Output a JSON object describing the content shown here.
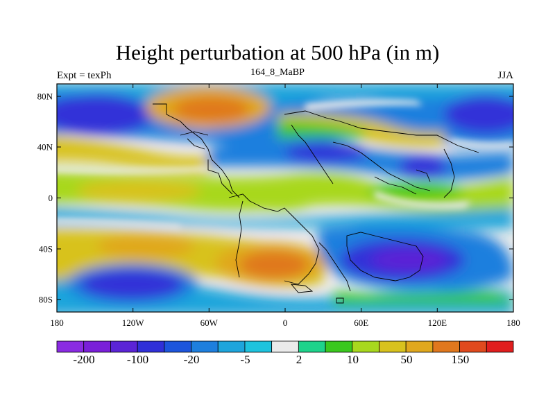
{
  "title": "Height perturbation at 500 hPa (in m)",
  "subtitle_left": "Expt = texPh",
  "subtitle_center": "164_8_MaBP",
  "subtitle_right": "JJA",
  "lon_ticks": [
    "180",
    "120W",
    "60W",
    "0",
    "60E",
    "120E",
    "180"
  ],
  "lat_ticks": [
    "80N",
    "40N",
    "0",
    "40S",
    "80S"
  ],
  "colorbar": {
    "colors": [
      "#8a2be2",
      "#7a1fd9",
      "#5b24d6",
      "#3030d8",
      "#1d55dc",
      "#1e7fde",
      "#1ea5dc",
      "#1ec3de",
      "#ebebeb",
      "#1ed38b",
      "#3ac81e",
      "#a8d81e",
      "#d8c21e",
      "#e0a81e",
      "#e0781e",
      "#e04a1e",
      "#e01e1e"
    ],
    "labels": [
      "-200",
      "-100",
      "-20",
      "-5",
      "2",
      "10",
      "50",
      "150"
    ]
  },
  "colors": {
    "neutral": "#ebebeb",
    "blue_deep": "#3030d8",
    "blue": "#1e7fde",
    "cyan": "#1ec3de",
    "green": "#3ac81e",
    "yellow": "#d8c21e",
    "orange": "#e0781e",
    "red": "#e04a1e",
    "purple": "#5b24d6"
  }
}
